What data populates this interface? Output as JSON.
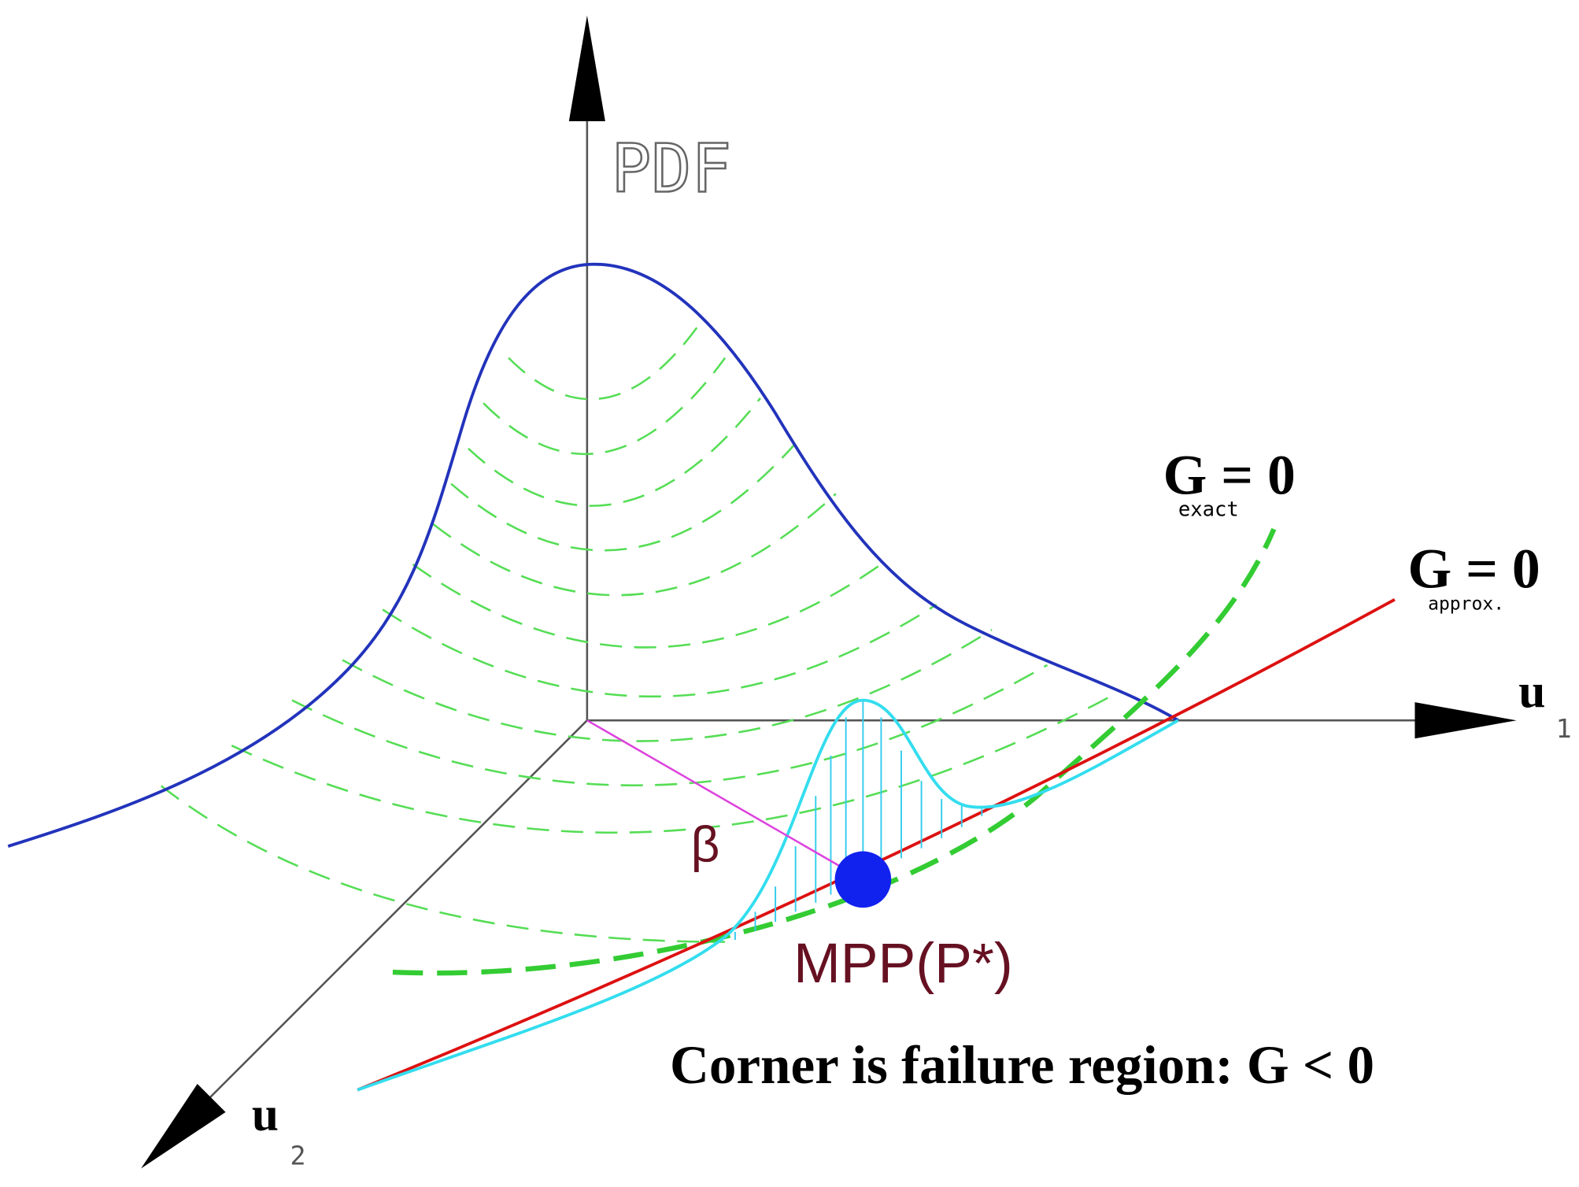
{
  "axes": {
    "vertical": "PDF",
    "u1": {
      "letter": "u",
      "index": "1"
    },
    "u2": {
      "letter": "u",
      "index": "2"
    }
  },
  "limit_states": {
    "exact": {
      "label": "G = 0",
      "subscript": "exact"
    },
    "approx": {
      "label": "G = 0",
      "subscript": "approx."
    }
  },
  "beta": "β",
  "mpp": "MPP(P*)",
  "caption": "Corner is failure region: G < 0"
}
